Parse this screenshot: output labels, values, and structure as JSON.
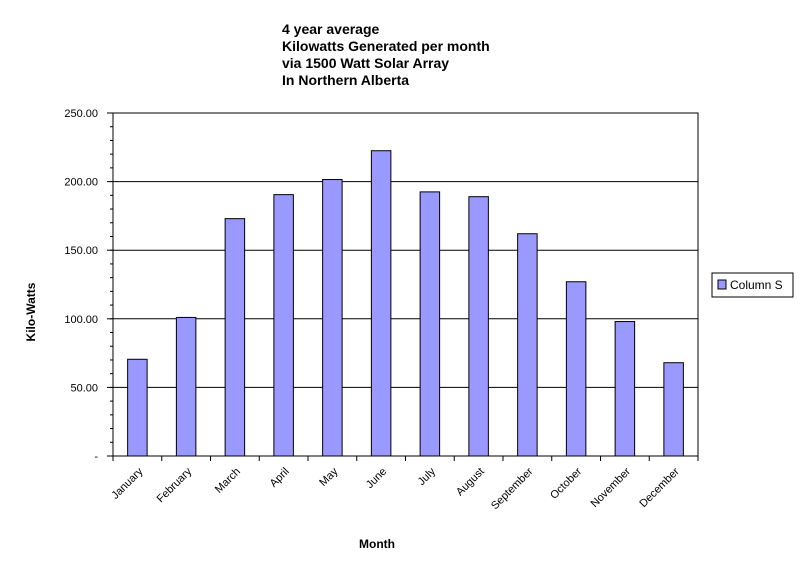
{
  "chart_data": {
    "type": "bar",
    "title_lines": [
      "4 year average",
      "Kilowatts Generated per month",
      "via 1500 Watt Solar Array",
      "In Northern Alberta"
    ],
    "xlabel": "Month",
    "ylabel": "Kilo-Watts",
    "categories": [
      "January",
      "February",
      "March",
      "April",
      "May",
      "June",
      "July",
      "August",
      "September",
      "October",
      "November",
      "December"
    ],
    "series": [
      {
        "name": "Column S",
        "values": [
          70.5,
          101,
          173,
          190.5,
          201.5,
          222.5,
          192.5,
          189,
          162,
          127,
          98,
          68
        ],
        "color": "#9999ff"
      }
    ],
    "yticks": [
      "-",
      "50.00",
      "100.00",
      "150.00",
      "200.00",
      "250.00"
    ],
    "ylim": [
      0,
      250
    ],
    "grid": true,
    "legend_position": "right"
  }
}
